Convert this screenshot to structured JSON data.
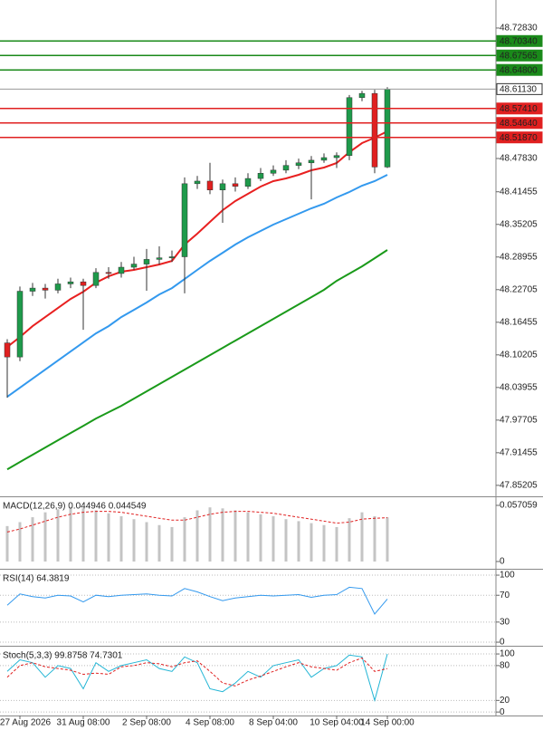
{
  "chart_data": [
    {
      "type": "candlestick",
      "categories": [
        null,
        "27 Aug 2026",
        null,
        null,
        null,
        null,
        "31 Aug 08:00",
        null,
        null,
        null,
        null,
        "2 Sep 08:00",
        null,
        null,
        null,
        null,
        "4 Sep 08:00",
        null,
        null,
        null,
        null,
        "8 Sep 04:00",
        null,
        null,
        null,
        null,
        "10 Sep 04:00",
        null,
        null,
        null,
        "14 Sep 00:00"
      ],
      "open": [
        48.125,
        48.098,
        48.224,
        48.23,
        48.226,
        48.238,
        48.242,
        48.235,
        48.26,
        48.258,
        48.27,
        48.276,
        48.285,
        48.288,
        48.29,
        48.43,
        48.435,
        48.418,
        48.43,
        48.425,
        48.44,
        48.45,
        48.456,
        48.465,
        48.47,
        48.475,
        48.48,
        48.484,
        48.595,
        48.603,
        48.462
      ],
      "high": [
        48.132,
        48.233,
        48.24,
        48.238,
        48.248,
        48.25,
        48.248,
        48.268,
        48.27,
        48.28,
        48.29,
        48.305,
        48.31,
        48.302,
        48.442,
        48.445,
        48.47,
        48.438,
        48.442,
        48.45,
        48.46,
        48.465,
        48.475,
        48.478,
        48.483,
        48.488,
        48.49,
        48.6,
        48.608,
        48.61,
        48.615
      ],
      "low": [
        48.02,
        48.09,
        48.215,
        48.21,
        48.22,
        48.23,
        48.15,
        48.23,
        48.248,
        48.25,
        48.265,
        48.225,
        48.275,
        48.28,
        48.22,
        48.42,
        48.41,
        48.355,
        48.415,
        48.42,
        48.435,
        48.445,
        48.45,
        48.458,
        48.4,
        48.47,
        48.46,
        48.475,
        48.588,
        48.45,
        48.46
      ],
      "close": [
        48.098,
        48.224,
        48.23,
        48.226,
        48.238,
        48.242,
        48.235,
        48.26,
        48.258,
        48.27,
        48.276,
        48.285,
        48.288,
        48.29,
        48.43,
        48.435,
        48.418,
        48.43,
        48.425,
        48.44,
        48.45,
        48.456,
        48.465,
        48.47,
        48.475,
        48.48,
        48.484,
        48.595,
        48.603,
        48.462,
        48.6113
      ],
      "up_color": "#1e9a4b",
      "down_color": "#e02020",
      "series": [
        {
          "color": "#e82020",
          "values": [
            48.1172,
            48.1363,
            48.1571,
            48.1745,
            48.1918,
            48.2092,
            48.2231,
            48.2404,
            48.2526,
            48.2613,
            48.2648,
            48.27,
            48.2752,
            48.2821,
            48.3134,
            48.3342,
            48.3568,
            48.3793,
            48.3967,
            48.4106,
            48.4245,
            48.4349,
            48.4401,
            48.447,
            48.4557,
            48.4609,
            48.4696,
            48.4905,
            48.5078,
            48.5182,
            48.5304
          ]
        },
        {
          "color": "#3399ee",
          "values": [
            48.0217,
            48.0391,
            48.0564,
            48.0738,
            48.0911,
            48.1085,
            48.1259,
            48.1432,
            48.1571,
            48.1745,
            48.1884,
            48.2023,
            48.2179,
            48.23,
            48.2474,
            48.2648,
            48.2821,
            48.2977,
            48.3134,
            48.3273,
            48.3394,
            48.3516,
            48.362,
            48.3724,
            48.3828,
            48.3915,
            48.4036,
            48.4141,
            48.4262,
            48.4349,
            48.447
          ]
        },
        {
          "color": "#1a9a1a",
          "values": [
            47.8828,
            47.8967,
            47.9106,
            47.9245,
            47.9384,
            47.9523,
            47.9661,
            47.98,
            47.9922,
            48.0043,
            48.0182,
            48.0321,
            48.046,
            48.0599,
            48.0738,
            48.0877,
            48.1016,
            48.1155,
            48.1293,
            48.1432,
            48.1571,
            48.171,
            48.1849,
            48.1988,
            48.2127,
            48.2266,
            48.2439,
            48.2578,
            48.2717,
            48.2873,
            48.303
          ]
        }
      ],
      "ylim": [
        47.831,
        48.782
      ],
      "yticks": [
        {
          "value": 48.7283,
          "label": "48.72830"
        },
        {
          "value": 48.4783,
          "label": "48.47830"
        },
        48.41455,
        48.35205,
        48.28955,
        48.22705,
        48.16455,
        48.10205,
        48.03955,
        47.97705,
        47.91455,
        47.85205
      ],
      "levels": [
        {
          "value": 48.7034,
          "label": "48.70340",
          "color": "#1a8a1a"
        },
        {
          "value": 48.67565,
          "label": "48.67565",
          "color": "#1a8a1a"
        },
        {
          "value": 48.648,
          "label": "48.64800",
          "color": "#1a8a1a"
        },
        {
          "value": 48.6113,
          "label": "48.61130",
          "color": "#999999",
          "box": "outline"
        },
        {
          "value": 48.5741,
          "label": "48.57410",
          "color": "#e02020"
        },
        {
          "value": 48.5464,
          "label": "48.54640",
          "color": "#e02020"
        },
        {
          "value": 48.5187,
          "label": "48.51870",
          "color": "#e02020"
        }
      ]
    },
    {
      "type": "indicator",
      "title": "MACD(12,26,9) 0.044946 0.044549",
      "series": [
        {
          "kind": "bar",
          "color": "#c4c4c4",
          "values": [
            0.036,
            0.04,
            0.045,
            0.05,
            0.053,
            0.055,
            0.054,
            0.052,
            0.049,
            0.046,
            0.043,
            0.04,
            0.037,
            0.035,
            0.045,
            0.052,
            0.055,
            0.054,
            0.052,
            0.05,
            0.048,
            0.046,
            0.043,
            0.041,
            0.039,
            0.037,
            0.035,
            0.044,
            0.05,
            0.046,
            0.044946
          ]
        },
        {
          "kind": "line",
          "dash": true,
          "color": "#e02020",
          "values": [
            0.03,
            0.033,
            0.037,
            0.041,
            0.045,
            0.048,
            0.05,
            0.051,
            0.051,
            0.05,
            0.048,
            0.046,
            0.044,
            0.042,
            0.042,
            0.045,
            0.048,
            0.05,
            0.051,
            0.051,
            0.05,
            0.049,
            0.047,
            0.045,
            0.043,
            0.041,
            0.039,
            0.04,
            0.043,
            0.044,
            0.044549
          ]
        }
      ],
      "ylim": [
        -0.0074,
        0.0644
      ],
      "yticks": [
        0.057059,
        0
      ]
    },
    {
      "type": "indicator",
      "title": "RSI(14) 64.3819",
      "series": [
        {
          "kind": "line",
          "color": "#3399ee",
          "values": [
            55,
            72,
            68,
            66,
            70,
            69,
            60,
            70,
            68,
            70,
            71,
            72,
            70,
            69,
            80,
            75,
            68,
            62,
            66,
            68,
            70,
            69,
            70,
            71,
            67,
            70,
            71,
            82,
            80,
            42,
            64.3819
          ]
        }
      ],
      "ylim": [
        -4,
        106.8
      ],
      "yticks": [
        100,
        70,
        30,
        0
      ],
      "grid": "dotted"
    },
    {
      "type": "indicator",
      "title": "Stoch(5,3,3) 99.8758 74.7301",
      "series": [
        {
          "kind": "line",
          "color": "#22b5d5",
          "values": [
            70,
            90,
            85,
            60,
            80,
            75,
            40,
            85,
            70,
            80,
            85,
            90,
            75,
            70,
            95,
            85,
            40,
            35,
            50,
            70,
            60,
            80,
            85,
            90,
            60,
            75,
            80,
            98,
            95,
            20,
            99.8758
          ]
        },
        {
          "kind": "line",
          "dash": true,
          "color": "#e02020",
          "values": [
            60,
            80,
            85,
            78,
            75,
            72,
            65,
            67,
            65,
            78,
            80,
            85,
            83,
            78,
            85,
            88,
            70,
            50,
            45,
            55,
            62,
            70,
            78,
            85,
            78,
            75,
            72,
            85,
            93,
            70,
            74.7301
          ]
        }
      ],
      "ylim": [
        -6,
        111
      ],
      "yticks": [
        100,
        80,
        20,
        0
      ],
      "grid": "dotted"
    }
  ]
}
